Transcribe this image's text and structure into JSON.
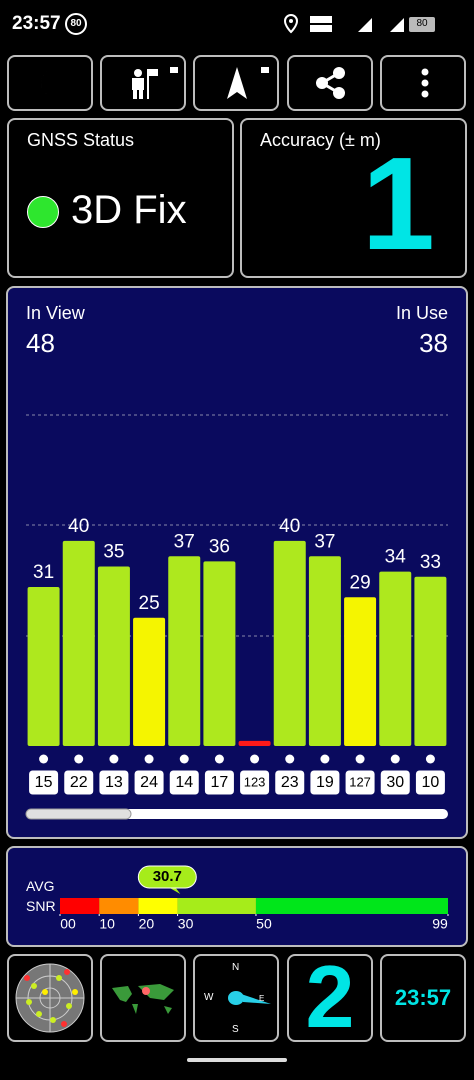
{
  "status_bar": {
    "time": "23:57",
    "badge": "80",
    "battery": "80"
  },
  "gnss_status": {
    "title": "GNSS Status",
    "fix": "3D Fix"
  },
  "accuracy": {
    "title": "Accuracy (± m)",
    "value": 1
  },
  "signal_chart": {
    "type": "bar",
    "in_view_label": "In View",
    "in_view": 48,
    "in_use_label": "In Use",
    "in_use": 38,
    "categories": [
      "15",
      "22",
      "13",
      "24",
      "14",
      "17",
      "123",
      "23",
      "19",
      "127",
      "30",
      "10"
    ],
    "values": [
      31,
      40,
      35,
      25,
      37,
      36,
      1,
      40,
      37,
      29,
      34,
      33
    ],
    "value_labels": [
      "31",
      "40",
      "35",
      "25",
      "37",
      "36",
      null,
      "40",
      "37",
      "29",
      "34",
      "33"
    ],
    "colors": [
      "#aee81e",
      "#aee81e",
      "#aee81e",
      "#f5f500",
      "#aee81e",
      "#aee81e",
      "#ff1a1a",
      "#aee81e",
      "#aee81e",
      "#f5f500",
      "#aee81e",
      "#aee81e"
    ],
    "ylim": [
      0,
      86
    ]
  },
  "snr": {
    "avg_label": "AVG",
    "snr_label": "SNR",
    "average": 30.7,
    "xlim": [
      0,
      99
    ],
    "xticks": [
      {
        "value": 0,
        "label": "00"
      },
      10,
      20,
      30,
      50,
      99
    ],
    "segment_colors": [
      "#ff0000",
      "#ff8c00",
      "#ffff00",
      "#a6ec1a",
      "#00e61a"
    ]
  },
  "compass": {
    "n": "N",
    "e": "E",
    "s": "S",
    "w": "W"
  },
  "widgets": {
    "big_number": 2,
    "clock": "23:57"
  }
}
